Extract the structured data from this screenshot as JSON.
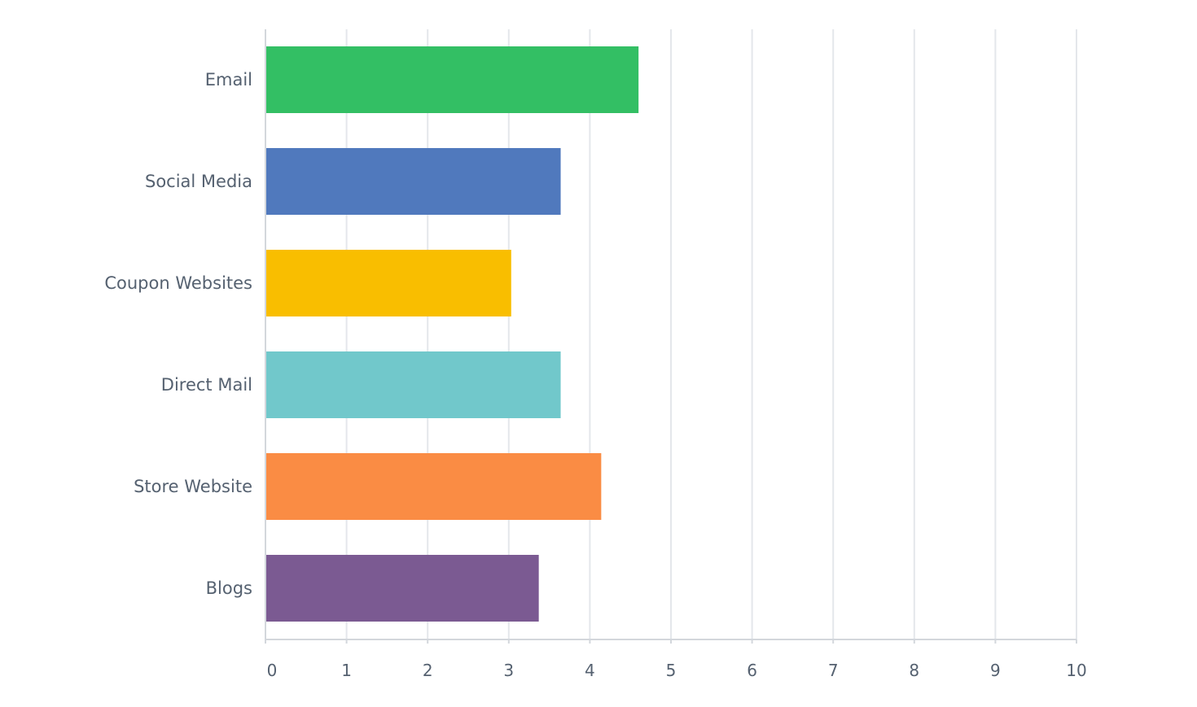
{
  "chart_data": {
    "type": "bar",
    "orientation": "horizontal",
    "categories": [
      "Email",
      "Social Media",
      "Coupon Websites",
      "Direct Mail",
      "Store Website",
      "Blogs"
    ],
    "values": [
      4.6,
      3.64,
      3.03,
      3.64,
      4.14,
      3.37
    ],
    "colors": [
      "#33bf64",
      "#5079bd",
      "#f9be00",
      "#71c8cb",
      "#fa8c44",
      "#7b5a92"
    ],
    "xlim": [
      0,
      10
    ],
    "xticks": [
      "0",
      "1",
      "2",
      "3",
      "4",
      "5",
      "6",
      "7",
      "8",
      "9",
      "10"
    ],
    "grid": true,
    "title": "",
    "xlabel": "",
    "ylabel": ""
  }
}
